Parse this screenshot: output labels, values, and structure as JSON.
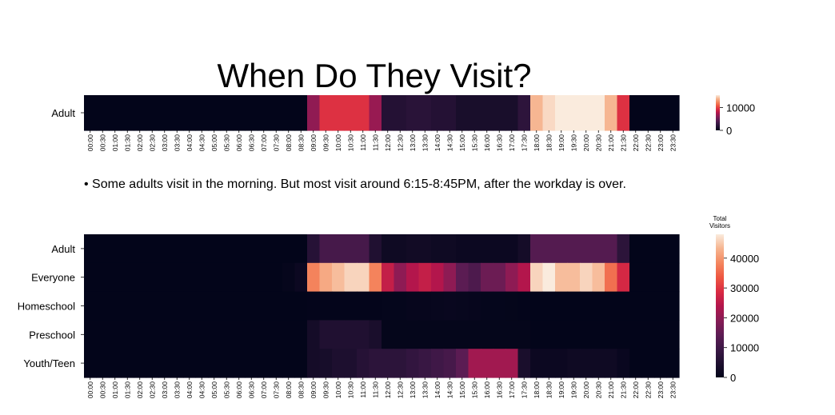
{
  "page": {
    "title": "When Do They Visit?",
    "caption": "• Some adults visit in the morning. But most visit around 6:15-8:45PM, after the workday is over."
  },
  "chart_data": [
    {
      "type": "heatmap",
      "title": "When Do They Visit?",
      "xlabel": "",
      "ylabel": "",
      "colormap": "rocket",
      "x": [
        "00:00",
        "00:30",
        "01:00",
        "01:30",
        "02:00",
        "02:30",
        "03:00",
        "03:30",
        "04:00",
        "04:30",
        "05:00",
        "05:30",
        "06:00",
        "06:30",
        "07:00",
        "07:30",
        "08:00",
        "08:30",
        "09:00",
        "09:30",
        "10:00",
        "10:30",
        "11:00",
        "11:30",
        "12:00",
        "12:30",
        "13:00",
        "13:30",
        "14:00",
        "14:30",
        "15:00",
        "15:30",
        "16:00",
        "16:30",
        "17:00",
        "17:30",
        "18:00",
        "18:30",
        "19:00",
        "19:30",
        "20:00",
        "20:30",
        "21:00",
        "21:30",
        "22:00",
        "22:30",
        "23:00",
        "23:30"
      ],
      "y": [
        "Adult"
      ],
      "values": [
        [
          0,
          0,
          0,
          0,
          0,
          0,
          0,
          0,
          0,
          0,
          0,
          0,
          0,
          0,
          0,
          0,
          0,
          0,
          6500,
          9500,
          9500,
          9500,
          9500,
          6800,
          1800,
          1800,
          2100,
          2100,
          1800,
          1800,
          1200,
          1200,
          1200,
          1200,
          1200,
          2300,
          14000,
          15000,
          15500,
          15500,
          15500,
          15500,
          14000,
          9500,
          0,
          0,
          0,
          0
        ]
      ],
      "colorbar": {
        "ticks": [
          0,
          10000
        ],
        "range": [
          0,
          15500
        ],
        "label": ""
      }
    },
    {
      "type": "heatmap",
      "title": "",
      "xlabel": "",
      "ylabel": "",
      "colormap": "rocket",
      "x": [
        "00:00",
        "00:30",
        "01:00",
        "01:30",
        "02:00",
        "02:30",
        "03:00",
        "03:30",
        "04:00",
        "04:30",
        "05:00",
        "05:30",
        "06:00",
        "06:30",
        "07:00",
        "07:30",
        "08:00",
        "08:30",
        "09:00",
        "09:30",
        "10:00",
        "10:30",
        "11:00",
        "11:30",
        "12:00",
        "12:30",
        "13:00",
        "13:30",
        "14:00",
        "14:30",
        "15:00",
        "15:30",
        "16:00",
        "16:30",
        "17:00",
        "17:30",
        "18:00",
        "18:30",
        "19:00",
        "19:30",
        "20:00",
        "20:30",
        "21:00",
        "21:30",
        "22:00",
        "22:30",
        "23:00",
        "23:30"
      ],
      "y": [
        "Adult",
        "Everyone",
        "Homeschool",
        "Preschool",
        "Youth/Teen"
      ],
      "values": [
        [
          0,
          0,
          0,
          0,
          0,
          0,
          0,
          0,
          0,
          0,
          0,
          0,
          0,
          0,
          0,
          0,
          0,
          0,
          6000,
          11000,
          11000,
          11000,
          11000,
          5000,
          2000,
          2000,
          2500,
          2500,
          2000,
          2000,
          1500,
          1500,
          1500,
          1500,
          1500,
          3000,
          13000,
          13000,
          13000,
          13000,
          13000,
          13000,
          13000,
          7000,
          0,
          0,
          0,
          0
        ],
        [
          0,
          0,
          0,
          0,
          0,
          0,
          0,
          0,
          0,
          0,
          0,
          0,
          0,
          0,
          0,
          0,
          500,
          1500,
          38000,
          42000,
          44000,
          46000,
          46000,
          38000,
          26000,
          20000,
          24000,
          26000,
          24000,
          20000,
          14000,
          12000,
          16000,
          16000,
          20000,
          24000,
          46000,
          48000,
          44000,
          44000,
          46000,
          44000,
          36000,
          28000,
          0,
          0,
          0,
          0
        ],
        [
          0,
          0,
          0,
          0,
          0,
          0,
          0,
          0,
          0,
          0,
          0,
          0,
          0,
          0,
          0,
          0,
          0,
          0,
          200,
          200,
          200,
          200,
          200,
          200,
          400,
          400,
          600,
          600,
          800,
          1000,
          800,
          600,
          400,
          400,
          300,
          200,
          0,
          0,
          0,
          0,
          0,
          0,
          0,
          0,
          0,
          0,
          0,
          0
        ],
        [
          0,
          0,
          0,
          0,
          0,
          0,
          0,
          0,
          0,
          0,
          0,
          0,
          0,
          0,
          0,
          0,
          0,
          0,
          3000,
          5000,
          5000,
          5000,
          5000,
          4000,
          300,
          300,
          300,
          300,
          300,
          300,
          300,
          300,
          300,
          300,
          300,
          300,
          0,
          0,
          0,
          0,
          0,
          0,
          0,
          0,
          0,
          0,
          0,
          0
        ],
        [
          0,
          0,
          0,
          0,
          0,
          0,
          0,
          0,
          0,
          0,
          0,
          0,
          0,
          0,
          0,
          0,
          0,
          0,
          3000,
          3500,
          4500,
          4500,
          6000,
          7000,
          7000,
          7000,
          8000,
          9000,
          10000,
          11000,
          14000,
          22000,
          22000,
          22000,
          22000,
          4000,
          1500,
          1500,
          1500,
          2000,
          2000,
          2000,
          2000,
          1000,
          0,
          0,
          0,
          0
        ]
      ],
      "colorbar": {
        "ticks": [
          0,
          10000,
          20000,
          30000,
          40000
        ],
        "range": [
          0,
          48000
        ],
        "label": "Total\nVisitors"
      }
    }
  ]
}
